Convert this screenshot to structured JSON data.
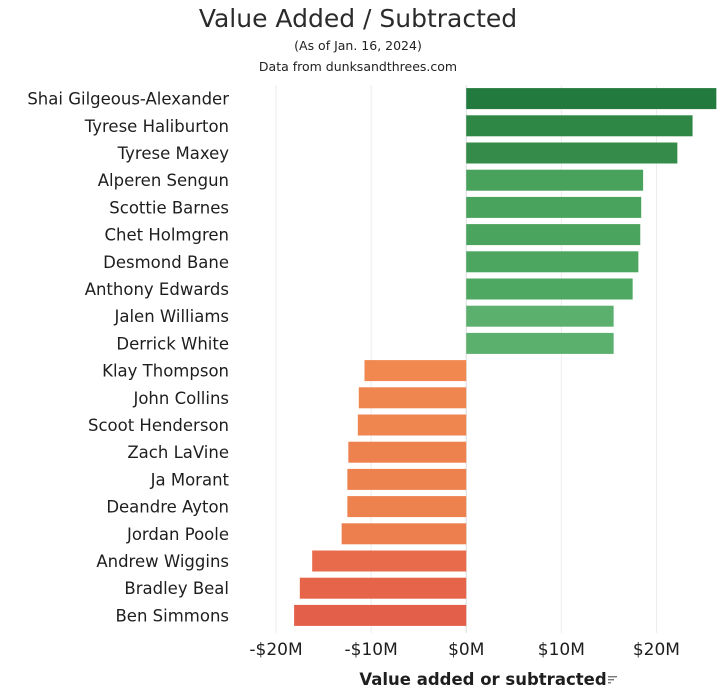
{
  "chart_data": {
    "type": "bar",
    "orientation": "horizontal",
    "title": "Value Added / Subtracted",
    "subtitle": "(As of Jan. 16, 2024)",
    "source_note": "Data from dunksandthrees.com",
    "xlabel": "Value added or subtracted",
    "ylabel": "",
    "xlim": [
      -24,
      27
    ],
    "xticks": [
      -20,
      -10,
      0,
      10,
      20
    ],
    "xtick_labels": [
      "-$20M",
      "-$10M",
      "$0M",
      "$10M",
      "$20M"
    ],
    "grid": "vertical",
    "legend": "none",
    "categories": [
      "Shai Gilgeous-Alexander",
      "Tyrese Haliburton",
      "Tyrese Maxey",
      "Alperen Sengun",
      "Scottie Barnes",
      "Chet Holmgren",
      "Desmond Bane",
      "Anthony Edwards",
      "Jalen Williams",
      "Derrick White",
      "Klay Thompson",
      "John Collins",
      "Scoot Henderson",
      "Zach LaVine",
      "Ja Morant",
      "Deandre Ayton",
      "Jordan Poole",
      "Andrew Wiggins",
      "Bradley Beal",
      "Ben Simmons"
    ],
    "values": [
      26.3,
      23.8,
      22.2,
      18.6,
      18.4,
      18.3,
      18.1,
      17.5,
      15.5,
      15.5,
      -10.7,
      -11.3,
      -11.4,
      -12.4,
      -12.5,
      -12.5,
      -13.1,
      -16.2,
      -17.5,
      -18.1
    ],
    "colors": [
      "#237a3f",
      "#2f8745",
      "#358c4a",
      "#48a25c",
      "#4aa35d",
      "#4ba45e",
      "#4da660",
      "#4fa862",
      "#5cb06d",
      "#5cb06d",
      "#f0884f",
      "#ef864f",
      "#ef864f",
      "#ee824e",
      "#ee824e",
      "#ee824e",
      "#ed7f4e",
      "#e86c4c",
      "#e6654a",
      "#e45f49"
    ]
  }
}
